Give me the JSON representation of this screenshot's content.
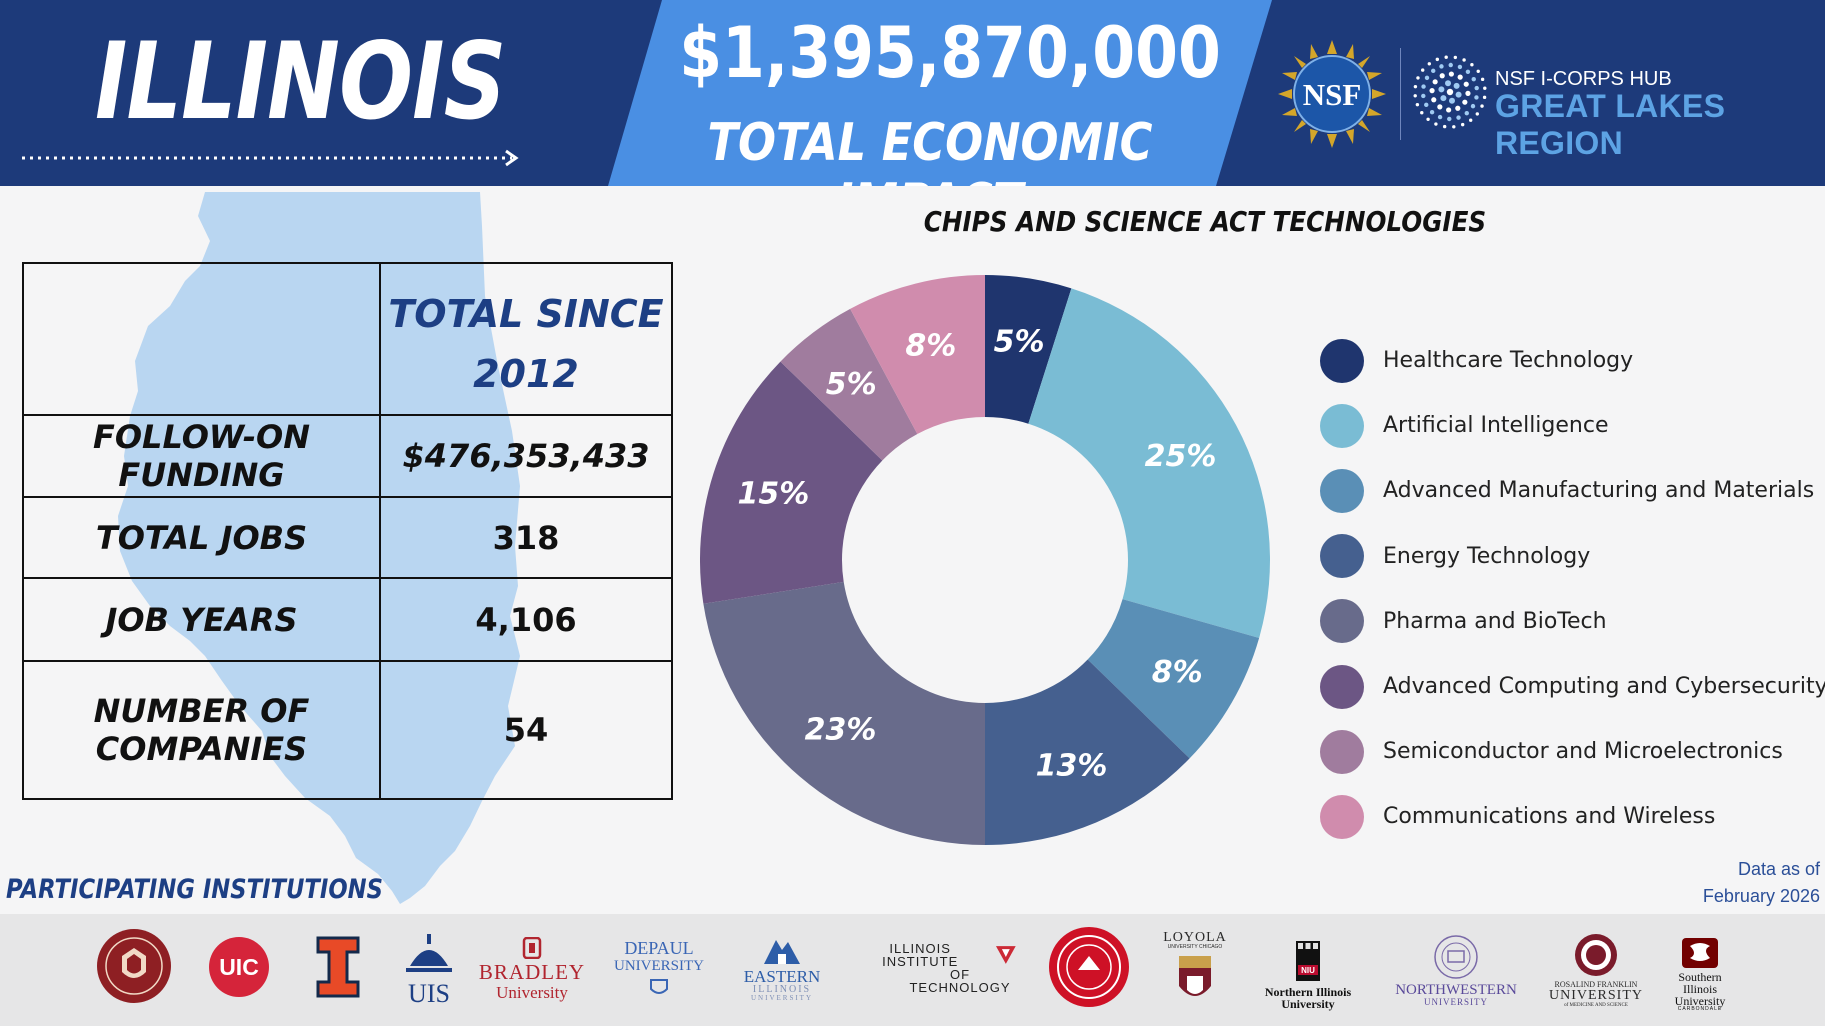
{
  "header": {
    "state": "ILLINOIS",
    "impact_amount": "$1,395,870,000",
    "impact_label": "TOTAL ECONOMIC IMPACT",
    "nsf_logo_text": "NSF",
    "hub_line1": "NSF I-CORPS HUB",
    "hub_line2": "GREAT LAKES REGION"
  },
  "stats_table": {
    "column_header": [
      "TOTAL SINCE",
      "2012"
    ],
    "rows": [
      {
        "label": "FOLLOW-ON FUNDING",
        "value": "$476,353,433"
      },
      {
        "label": "TOTAL JOBS",
        "value": "318"
      },
      {
        "label": "JOB YEARS",
        "value": "4,106"
      },
      {
        "label": "NUMBER OF COMPANIES",
        "value": "54"
      }
    ]
  },
  "chart_data": {
    "type": "pie",
    "donut": true,
    "title": "CHIPS AND SCIENCE ACT TECHNOLOGIES",
    "legend_position": "right",
    "slices": [
      {
        "label": "Healthcare Technology",
        "value": 5,
        "display": "5%",
        "color": "#1f356e"
      },
      {
        "label": "Artificial Intelligence",
        "value": 25,
        "display": "25%",
        "color": "#7abcd4"
      },
      {
        "label": "Advanced Manufacturing and Materials",
        "value": 8,
        "display": "8%",
        "color": "#5a8fb6"
      },
      {
        "label": "Energy Technology",
        "value": 13,
        "display": "13%",
        "color": "#45608f"
      },
      {
        "label": "Pharma and BioTech",
        "value": 23,
        "display": "23%",
        "color": "#686b8b"
      },
      {
        "label": "Advanced Computing and Cybersecurity",
        "value": 15,
        "display": "15%",
        "color": "#6c5684"
      },
      {
        "label": "Semiconductor and Microelectronics",
        "value": 5,
        "display": "5%",
        "color": "#a07c9e"
      },
      {
        "label": "Communications and Wireless",
        "value": 8,
        "display": "8%",
        "color": "#d08cad"
      }
    ]
  },
  "data_as_of": [
    "Data as of",
    "February 2026"
  ],
  "institutions": {
    "title": "PARTICIPATING INSTITUTIONS",
    "logos": {
      "uic": "UIC",
      "illinois": "I",
      "uis": "UIS",
      "bradley": [
        "BRADLEY",
        "University"
      ],
      "depaul": [
        "DEPAUL",
        "UNIVERSITY"
      ],
      "eastern": [
        "EASTERN",
        "ILLINOIS",
        "UNIVERSITY"
      ],
      "iit": [
        "ILLINOIS INSTITUTE",
        "OF TECHNOLOGY"
      ],
      "loyola": [
        "LOYOLA",
        "UNIVERSITY CHICAGO"
      ],
      "niu": [
        "NIU",
        "Northern Illinois",
        "University"
      ],
      "northwestern": [
        "NORTHWESTERN",
        "UNIVERSITY"
      ],
      "rosalind": [
        "ROSALIND FRANKLIN",
        "UNIVERSITY",
        "of MEDICINE AND SCIENCE"
      ],
      "siu": [
        "Southern",
        "Illinois",
        "University",
        "CARBONDALE"
      ]
    }
  }
}
